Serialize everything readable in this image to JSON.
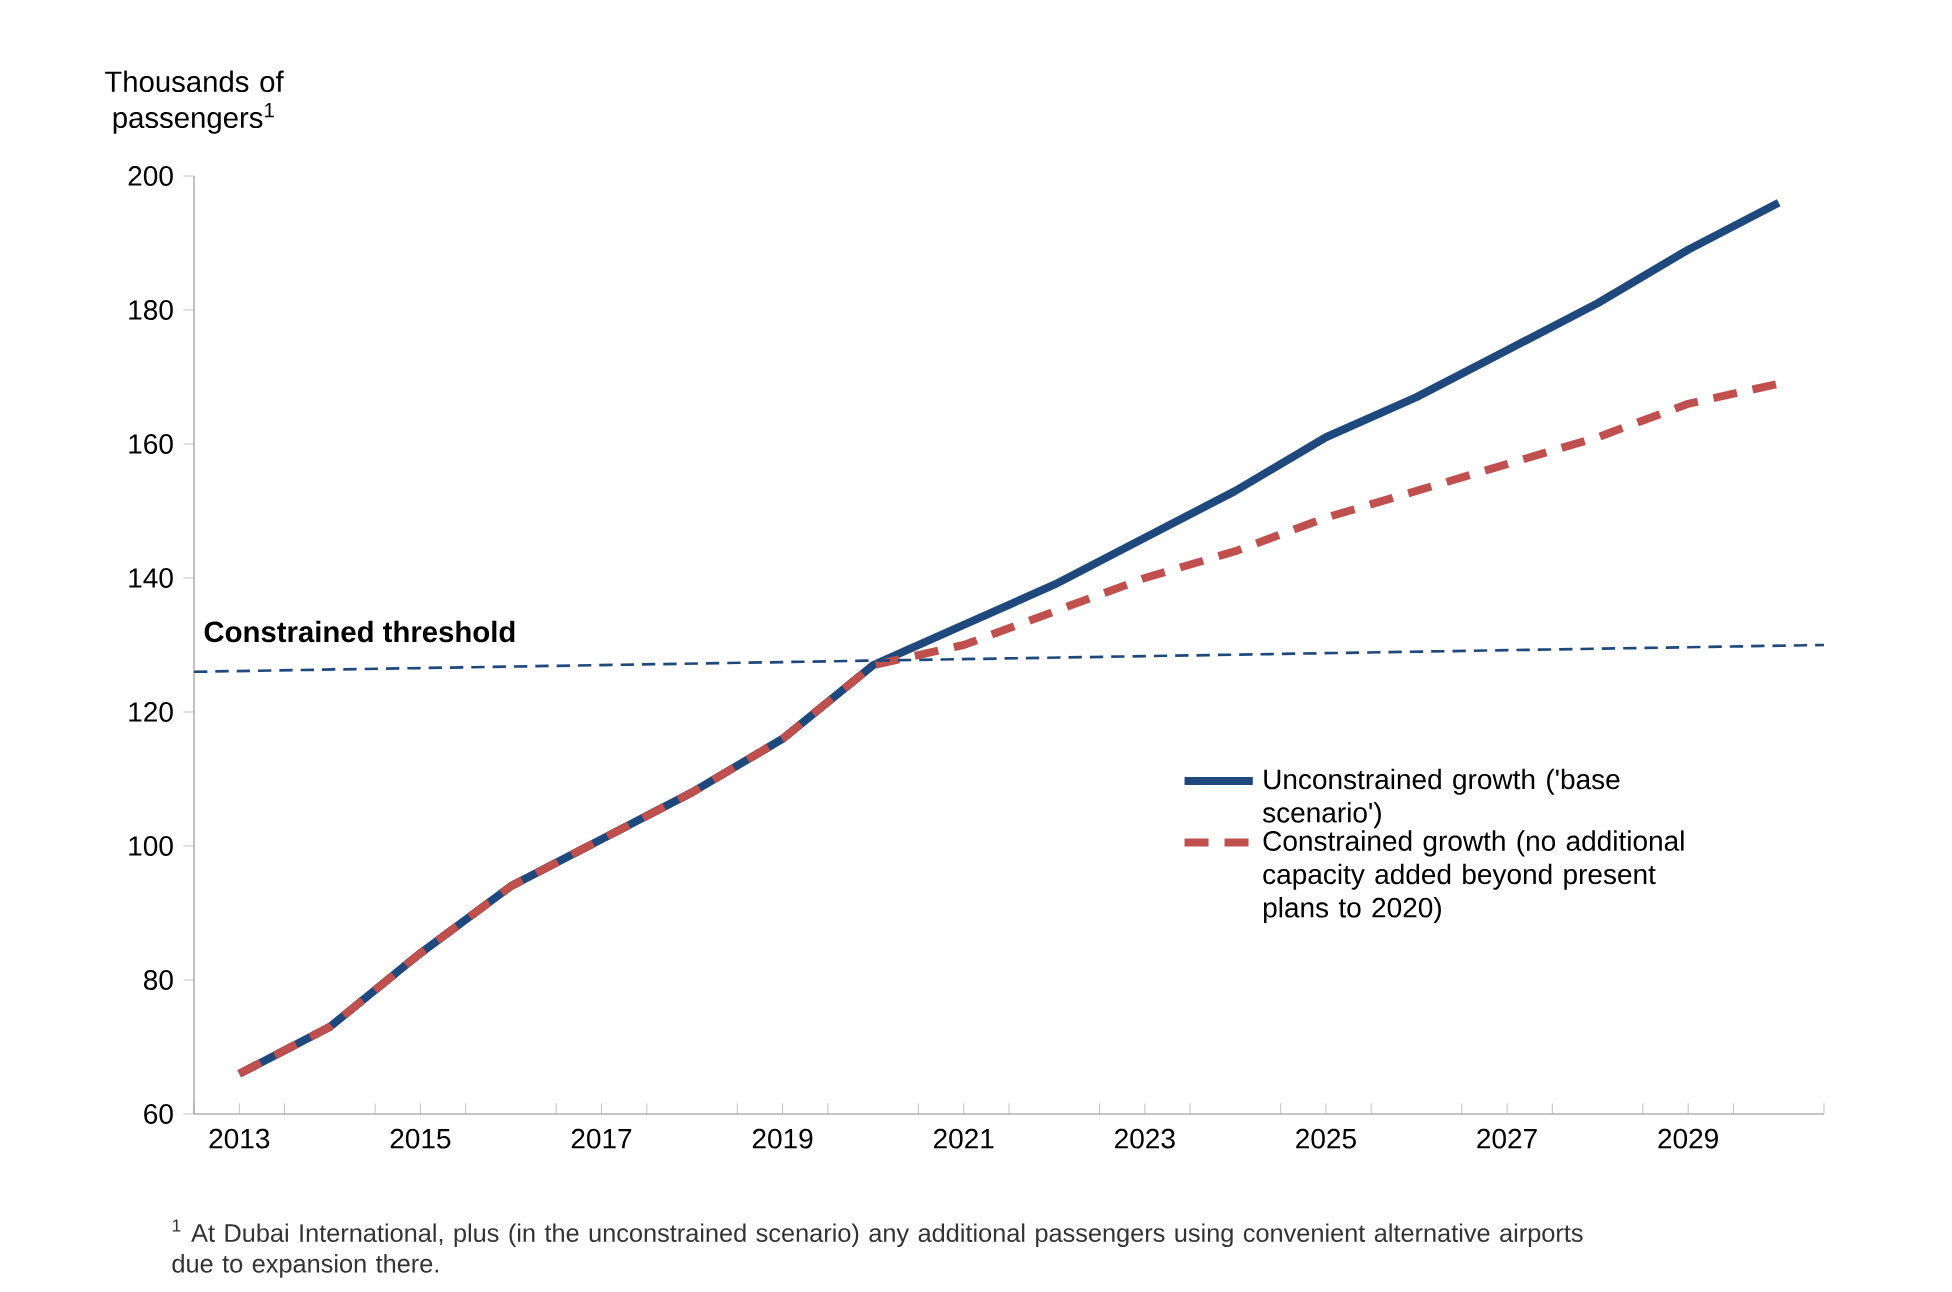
{
  "chart_data": {
    "type": "line",
    "ylabel": "Thousands of passengers$^{1}$",
    "x": [
      2013,
      2014,
      2015,
      2016,
      2017,
      2018,
      2019,
      2020,
      2021,
      2022,
      2023,
      2024,
      2025,
      2026,
      2027,
      2028,
      2029,
      2030
    ],
    "xlim": [
      2012.5,
      2030.5
    ],
    "xticks": [
      {
        "value": 2012.5,
        "label": null
      },
      {
        "value": 2013,
        "label": "2013"
      },
      {
        "value": 2013.5,
        "label": null
      },
      {
        "value": 2014.5,
        "label": null
      },
      {
        "value": 2015,
        "label": "2015"
      },
      {
        "value": 2015.5,
        "label": null
      },
      {
        "value": 2016.5,
        "label": null
      },
      {
        "value": 2017,
        "label": "2017"
      },
      {
        "value": 2017.5,
        "label": null
      },
      {
        "value": 2018.5,
        "label": null
      },
      {
        "value": 2019,
        "label": "2019"
      },
      {
        "value": 2019.5,
        "label": null
      },
      {
        "value": 2020.5,
        "label": null
      },
      {
        "value": 2021,
        "label": "2021"
      },
      {
        "value": 2021.5,
        "label": null
      },
      {
        "value": 2022.5,
        "label": null
      },
      {
        "value": 2023,
        "label": "2023"
      },
      {
        "value": 2023.5,
        "label": null
      },
      {
        "value": 2024.5,
        "label": null
      },
      {
        "value": 2025,
        "label": "2025"
      },
      {
        "value": 2025.5,
        "label": null
      },
      {
        "value": 2026.5,
        "label": null
      },
      {
        "value": 2027,
        "label": "2027"
      },
      {
        "value": 2027.5,
        "label": null
      },
      {
        "value": 2028.5,
        "label": null
      },
      {
        "value": 2029,
        "label": "2029"
      },
      {
        "value": 2029.5,
        "label": null
      },
      {
        "value": 2030.5,
        "label": null
      }
    ],
    "ylim": [
      60,
      200
    ],
    "yticks": [
      60,
      80,
      100,
      120,
      140,
      160,
      180,
      200
    ],
    "series": [
      {
        "name": "Unconstrained growth ('base scenario')",
        "color": "#1f497d",
        "line_style": "solid",
        "values": [
          66,
          73,
          84,
          94,
          101,
          108,
          116,
          127,
          133,
          139,
          146,
          153,
          161,
          167,
          174,
          181,
          189,
          196
        ]
      },
      {
        "name": "Constrained growth (no additional capacity added beyond present plans to 2020)",
        "color": "#c0504d",
        "line_style": "dashed",
        "values": [
          66,
          73,
          84,
          94,
          101,
          108,
          116,
          127,
          130,
          135,
          140,
          144,
          149,
          153,
          157,
          161,
          166,
          169
        ]
      },
      {
        "name": "Constrained threshold",
        "color": "#1f497d",
        "line_style": "dashed",
        "x": [
          2012.5,
          2030.5
        ],
        "values": [
          126,
          130
        ]
      }
    ],
    "legend": "right",
    "annotations": [
      "$^{1}$ At Dubai International, plus (in the unconstrained scenario) any additional passengers using convenient alternative airports due to expansion there."
    ]
  }
}
